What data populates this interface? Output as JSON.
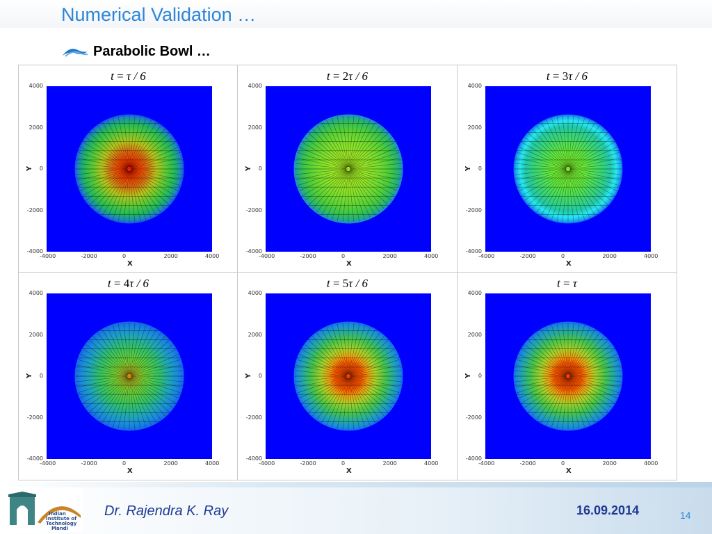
{
  "slide": {
    "title": "Numerical Validation …",
    "subtitle": "Parabolic Bowl …",
    "author": "Dr. Rajendra K. Ray",
    "date": "16.09.2014",
    "page_number": "14",
    "logo_text": [
      "Indian",
      "Institute of",
      "Technology",
      "Mandi"
    ]
  },
  "colors": {
    "title": "#2e86d8",
    "footer_text": "#1f3a93",
    "plot_background": "#0000ff"
  },
  "panels": [
    {
      "label_lhs": "t",
      "label_rhs": "τ / 6",
      "factor": "",
      "profile": "peak_red"
    },
    {
      "label_lhs": "t",
      "label_rhs": "τ / 6",
      "factor": "2",
      "profile": "green_flat"
    },
    {
      "label_lhs": "t",
      "label_rhs": "τ / 6",
      "factor": "3",
      "profile": "cyan_ring"
    },
    {
      "label_lhs": "t",
      "label_rhs": "τ / 6",
      "factor": "4",
      "profile": "green_ring"
    },
    {
      "label_lhs": "t",
      "label_rhs": "τ / 6",
      "factor": "5",
      "profile": "orange_peak"
    },
    {
      "label_lhs": "t",
      "label_rhs": "τ",
      "factor": "",
      "profile": "orange_peak"
    }
  ],
  "axes": {
    "xlabel": "X",
    "ylabel": "Y",
    "ticks": [
      "-4000",
      "-2000",
      "0",
      "2000",
      "4000"
    ],
    "range": [
      -4000,
      4000
    ]
  }
}
